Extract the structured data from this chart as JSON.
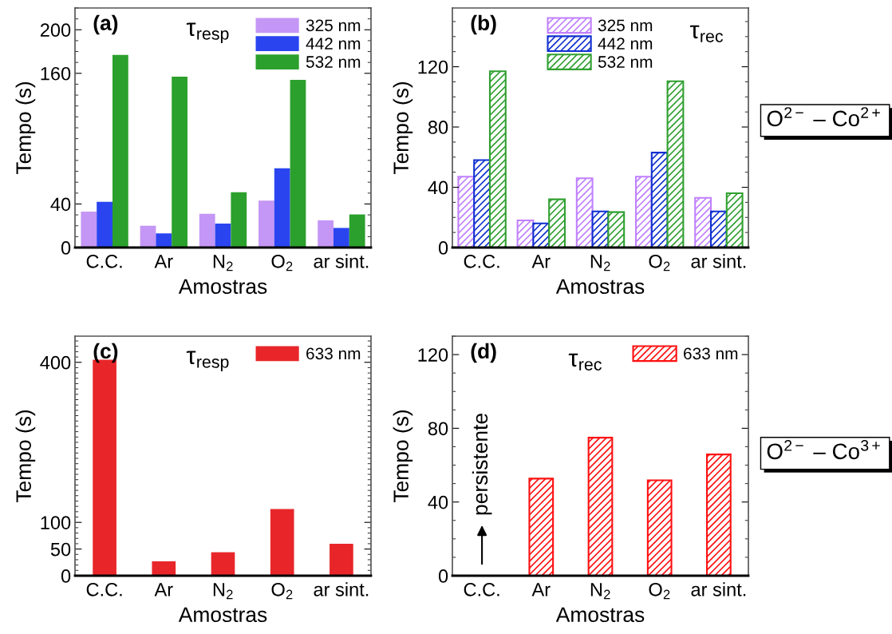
{
  "chart_data": [
    {
      "type": "bar",
      "annotations": [
        "(a)",
        "τ$_{resp}$"
      ],
      "categories": [
        "C.C.",
        "Ar",
        "N$_{2}$",
        "O$_{2}$",
        "ar sint."
      ],
      "xlabel": "Amostras",
      "ylabel": "Tempo (s)",
      "ylim": [
        0,
        220
      ],
      "yticks": [
        0,
        40,
        160,
        200
      ],
      "legend": "top right",
      "series": [
        {
          "name": "325 nm",
          "color": "#c496f5",
          "values": [
            33,
            20,
            31,
            43,
            25
          ]
        },
        {
          "name": "442 nm",
          "color": "#2a45f0",
          "values": [
            42,
            13,
            22,
            72.7,
            18
          ]
        },
        {
          "name": "532 nm",
          "color": "#2ca02c",
          "values": [
            176.9,
            157,
            50.8,
            154,
            30.4
          ]
        }
      ]
    },
    {
      "type": "bar",
      "annotations": [
        "(b)",
        "τ$_{rec}$",
        "O$^{2−}$ – Co$^{2+}$"
      ],
      "categories": [
        "C.C.",
        "Ar",
        "N$_{2}$",
        "O$_{2}$",
        "ar sint."
      ],
      "xlabel": "Amostras",
      "ylabel": "Tempo (s)",
      "ylim": [
        0,
        159
      ],
      "yticks": [
        0,
        40,
        80,
        120
      ],
      "legend": "top",
      "series": [
        {
          "name": "325 nm",
          "color": "#c080ff",
          "values": [
            47,
            18,
            46,
            47,
            33
          ]
        },
        {
          "name": "442 nm",
          "color": "#1030d0",
          "values": [
            58,
            16,
            24,
            63,
            24
          ]
        },
        {
          "name": "532 nm",
          "color": "#30a030",
          "values": [
            117,
            32,
            23.5,
            110.4,
            36
          ]
        }
      ]
    },
    {
      "type": "bar",
      "annotations": [
        "(c)",
        "τ$_{resp}$"
      ],
      "categories": [
        "C.C.",
        "Ar",
        "N$_{2}$",
        "O$_{2}$",
        "ar sint."
      ],
      "xlabel": "Amostras",
      "ylabel": "Tempo (s)",
      "ylim": [
        0,
        449
      ],
      "yticks": [
        0,
        50,
        100,
        400
      ],
      "legend": "top right",
      "series": [
        {
          "name": "633 nm",
          "color": "#e8262a",
          "values": [
            405,
            27,
            44,
            125,
            60
          ]
        }
      ]
    },
    {
      "type": "bar",
      "annotations": [
        "(d)",
        "τ$_{rec}$",
        "persistente",
        "O$^{2−}$ – Co$^{3+}$"
      ],
      "categories": [
        "C.C.",
        "Ar",
        "N$_{2}$",
        "O$_{2}$",
        "ar sint."
      ],
      "xlabel": "Amostras",
      "ylabel": "Tempo (s)",
      "ylim": [
        0,
        130
      ],
      "yticks": [
        0,
        40,
        80,
        120
      ],
      "legend": "top right",
      "series": [
        {
          "name": "633 nm",
          "color": "#ff1010",
          "values": [
            null,
            52.7,
            74.9,
            51.8,
            65.8
          ]
        }
      ]
    }
  ]
}
